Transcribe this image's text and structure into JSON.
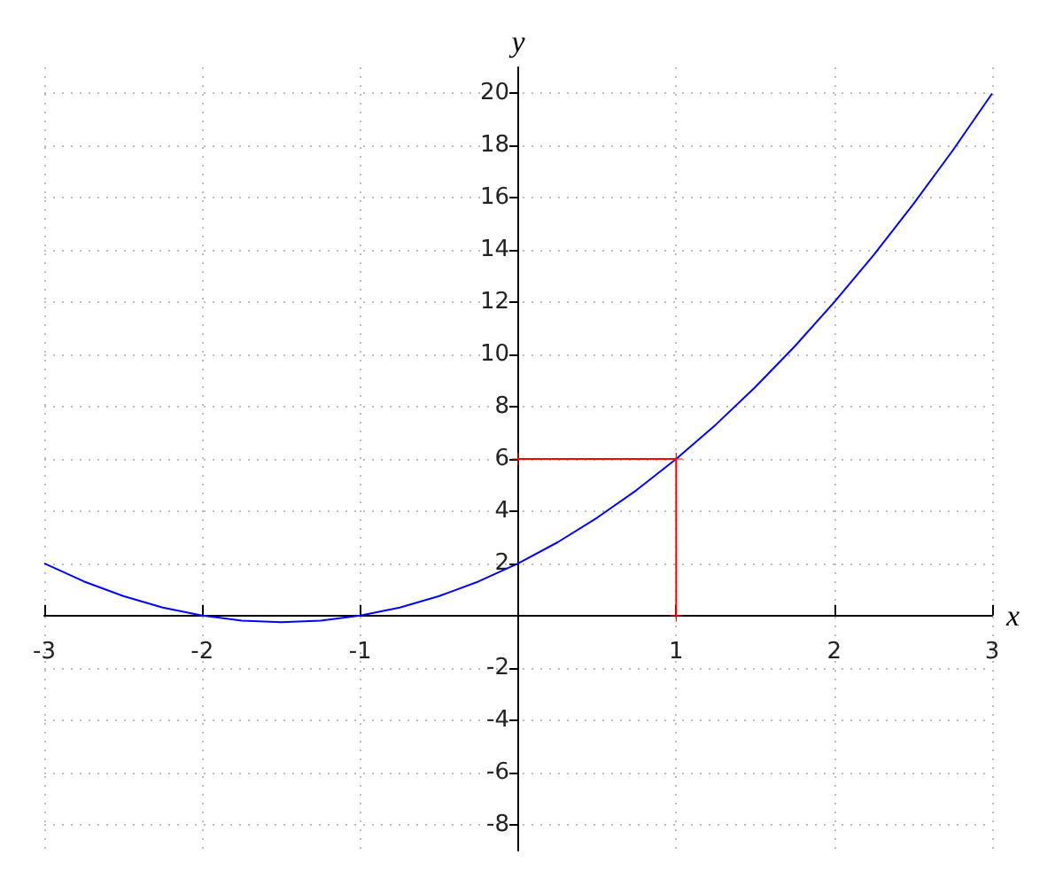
{
  "chart_data": {
    "type": "line",
    "xlabel": "x",
    "ylabel": "y",
    "xlim": [
      -3,
      3
    ],
    "xticks": [
      -3,
      -2,
      -1,
      1,
      2,
      3
    ],
    "ylim": [
      -9,
      21
    ],
    "yticks": [
      -8,
      -6,
      -4,
      -2,
      2,
      4,
      6,
      8,
      10,
      12,
      14,
      16,
      18,
      20
    ],
    "grid": true,
    "series": [
      {
        "color": "#0000ff",
        "marker": "none",
        "x": [
          -3,
          -2.75,
          -2.5,
          -2.25,
          -2,
          -1.75,
          -1.5,
          -1.25,
          -1,
          -0.75,
          -0.5,
          -0.25,
          0,
          0.25,
          0.5,
          0.75,
          1,
          1.25,
          1.5,
          1.75,
          2,
          2.25,
          2.5,
          2.75,
          3
        ],
        "values": [
          2,
          1.31,
          0.75,
          0.31,
          0,
          -0.19,
          -0.25,
          -0.19,
          0,
          0.31,
          0.75,
          1.31,
          2,
          2.81,
          3.75,
          4.81,
          6,
          7.31,
          8.75,
          10.31,
          12,
          13.81,
          15.75,
          17.81,
          20
        ]
      },
      {
        "color": "#ff0000",
        "marker": "cross",
        "x": [
          0,
          1,
          1
        ],
        "values": [
          6,
          6,
          0
        ]
      }
    ]
  }
}
